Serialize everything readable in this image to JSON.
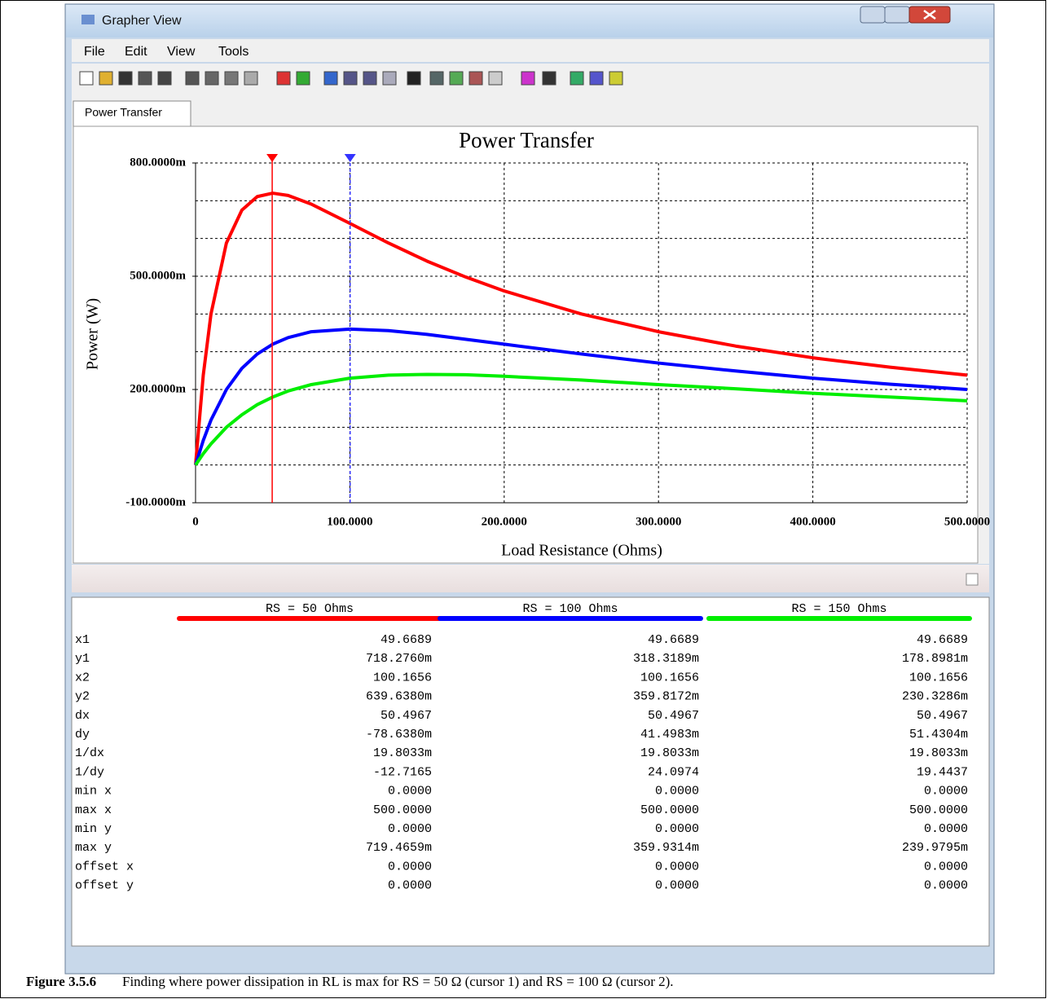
{
  "window": {
    "title": "Grapher View",
    "menu": [
      "File",
      "Edit",
      "View",
      "Tools"
    ],
    "tab": "Power Transfer"
  },
  "chart_data": {
    "type": "line",
    "title": "Power Transfer",
    "x_label": "Load Resistance (Ohms)",
    "y_label": "Power (W)",
    "x": [
      0,
      5,
      10,
      20,
      30,
      40,
      50,
      60,
      75,
      100,
      125,
      150,
      175,
      200,
      250,
      300,
      350,
      400,
      450,
      500
    ],
    "series": [
      {
        "name": "RS = 50 Ohms",
        "color": "#ff0000",
        "values": [
          0,
          0.238,
          0.4,
          0.588,
          0.675,
          0.711,
          0.72,
          0.714,
          0.691,
          0.64,
          0.588,
          0.54,
          0.498,
          0.461,
          0.4,
          0.353,
          0.315,
          0.284,
          0.259,
          0.238
        ]
      },
      {
        "name": "RS = 100 Ohms",
        "color": "#0000ff",
        "values": [
          0,
          0.065,
          0.119,
          0.2,
          0.256,
          0.294,
          0.32,
          0.3375,
          0.353,
          0.36,
          0.356,
          0.346,
          0.333,
          0.32,
          0.294,
          0.27,
          0.249,
          0.23,
          0.214,
          0.2
        ]
      },
      {
        "name": "RS = 150 Ohms",
        "color": "#00ee00",
        "values": [
          0,
          0.03,
          0.056,
          0.1,
          0.133,
          0.16,
          0.18,
          0.196,
          0.213,
          0.23,
          0.238,
          0.24,
          0.239,
          0.235,
          0.225,
          0.213,
          0.202,
          0.19,
          0.18,
          0.17
        ]
      }
    ],
    "xlim": [
      0,
      500
    ],
    "xticks": [
      0,
      {
        "value": 100,
        "label": "100.0000"
      },
      {
        "value": 200,
        "label": "200.0000"
      },
      {
        "value": 300,
        "label": "300.0000"
      },
      {
        "value": 400,
        "label": "400.0000"
      },
      {
        "value": 500,
        "label": "500.0000"
      }
    ],
    "ylim": [
      -0.1,
      0.8
    ],
    "yticks": [
      {
        "value": -0.1,
        "label": "-100.0000m"
      },
      {
        "value": 0.2,
        "label": "200.0000m"
      },
      {
        "value": 0.5,
        "label": "500.0000m"
      },
      {
        "value": 0.8,
        "label": "800.0000m"
      }
    ],
    "ygrid": [
      -0.1,
      0,
      0.1,
      0.2,
      0.3,
      0.4,
      0.5,
      0.6,
      0.7,
      0.8
    ],
    "cursors": [
      49.6689,
      100.1656
    ],
    "cursor_colors": [
      "#ff0000",
      "#3333ff"
    ],
    "grid": true
  },
  "table": {
    "rows": [
      [
        "x1",
        "49.6689",
        "49.6689",
        "49.6689"
      ],
      [
        "y1",
        "718.2760m",
        "318.3189m",
        "178.8981m"
      ],
      [
        "x2",
        "100.1656",
        "100.1656",
        "100.1656"
      ],
      [
        "y2",
        "639.6380m",
        "359.8172m",
        "230.3286m"
      ],
      [
        "dx",
        "50.4967",
        "50.4967",
        "50.4967"
      ],
      [
        "dy",
        "-78.6380m",
        "41.4983m",
        "51.4304m"
      ],
      [
        "1/dx",
        "19.8033m",
        "19.8033m",
        "19.8033m"
      ],
      [
        "1/dy",
        "-12.7165",
        "24.0974",
        "19.4437"
      ],
      [
        "min x",
        "0.0000",
        "0.0000",
        "0.0000"
      ],
      [
        "max x",
        "500.0000",
        "500.0000",
        "500.0000"
      ],
      [
        "min y",
        "0.0000",
        "0.0000",
        "0.0000"
      ],
      [
        "max y",
        "719.4659m",
        "359.9314m",
        "239.9795m"
      ],
      [
        "offset x",
        "0.0000",
        "0.0000",
        "0.0000"
      ],
      [
        "offset y",
        "0.0000",
        "0.0000",
        "0.0000"
      ]
    ]
  },
  "caption": {
    "label": "Figure 3.5.6",
    "text": "Finding where power dissipation in RL is max for RS = 50 Ω (cursor 1) and RS = 100 Ω (cursor 2)."
  }
}
